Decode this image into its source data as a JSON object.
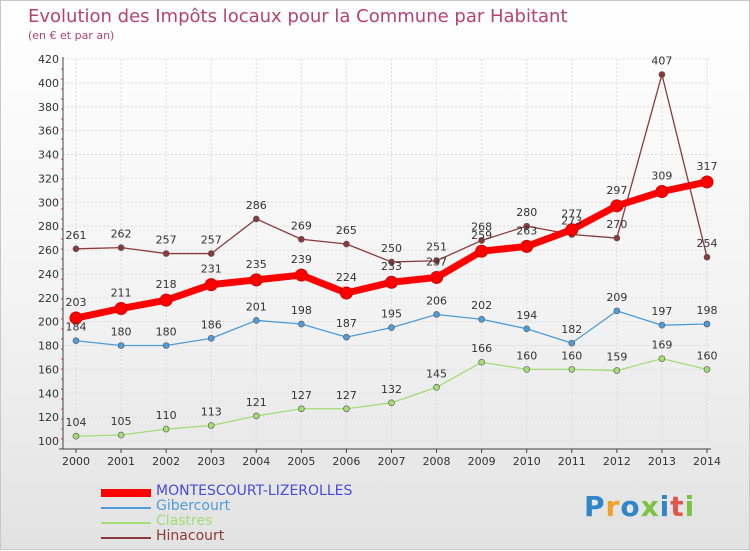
{
  "title": "Evolution des Impôts locaux pour la Commune par Habitant",
  "subtitle": "(en € et par an)",
  "logo": {
    "text": "Proxiti",
    "letters": [
      "P",
      "r",
      "o",
      "x",
      "i",
      "t",
      "i"
    ]
  },
  "chart_data": {
    "type": "line",
    "x": [
      "2000",
      "2001",
      "2002",
      "2003",
      "2004",
      "2005",
      "2006",
      "2007",
      "2008",
      "2009",
      "2010",
      "2011",
      "2012",
      "2013",
      "2014"
    ],
    "ylim": [
      100,
      420
    ],
    "yticks": [
      "100",
      "120",
      "140",
      "160",
      "180",
      "200",
      "220",
      "240",
      "260",
      "280",
      "300",
      "320",
      "340",
      "360",
      "380",
      "400",
      "420"
    ],
    "grid": true,
    "legend_position": "bottom-left",
    "series": [
      {
        "name": "MONTESCOURT-LIZEROLLES",
        "color": "#ff0000",
        "label_color": "#4a4ad8",
        "values": [
          203,
          211,
          218,
          231,
          235,
          239,
          224,
          233,
          237,
          259,
          263,
          277,
          297,
          309,
          317
        ],
        "labels": [
          "203",
          "211",
          "218",
          "231",
          "235",
          "239",
          "224",
          "233",
          "237",
          "259",
          "263",
          "277",
          "297",
          "309",
          "317"
        ]
      },
      {
        "name": "Gibercourt",
        "color": "#4f9cd8",
        "label_color": "#4f9cd8",
        "values": [
          184,
          180,
          180,
          186,
          201,
          198,
          187,
          195,
          206,
          202,
          194,
          182,
          209,
          197,
          198
        ],
        "labels": [
          "184",
          "180",
          "180",
          "186",
          "201",
          "198",
          "187",
          "195",
          "206",
          "202",
          "194",
          "182",
          "209",
          "197",
          "198"
        ]
      },
      {
        "name": "Clastres",
        "color": "#a4dc78",
        "label_color": "#a4dc78",
        "values": [
          104,
          105,
          110,
          113,
          121,
          127,
          127,
          132,
          145,
          166,
          160,
          160,
          159,
          169,
          160
        ],
        "labels": [
          "104",
          "105",
          "110",
          "113",
          "121",
          "127",
          "127",
          "132",
          "145",
          "166",
          "160",
          "160",
          "159",
          "169",
          "160"
        ]
      },
      {
        "name": "Hinacourt",
        "color": "#8b3a3a",
        "label_color": "#8b3a3a",
        "values": [
          261,
          262,
          257,
          257,
          286,
          269,
          265,
          250,
          251,
          268,
          280,
          273,
          270,
          407,
          254
        ],
        "labels": [
          "261",
          "262",
          "257",
          "257",
          "286",
          "269",
          "265",
          "250",
          "251",
          "268",
          "280",
          "273",
          "270",
          "407",
          "254"
        ]
      }
    ]
  }
}
